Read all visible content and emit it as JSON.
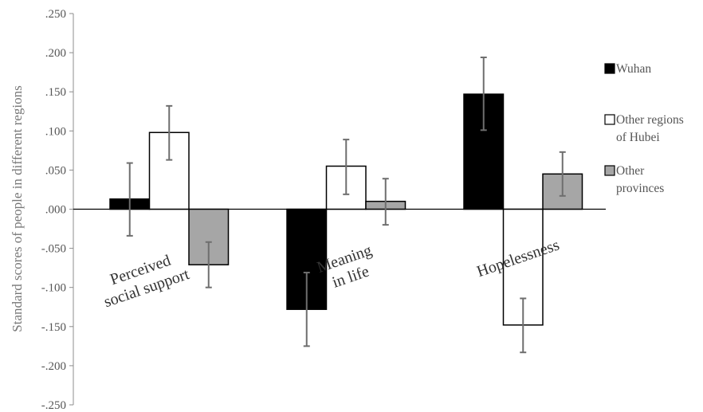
{
  "chart_data": {
    "type": "bar",
    "title": "",
    "xlabel": "",
    "ylabel": "Standard scores of people in different regions",
    "ylim": [
      -0.25,
      0.25
    ],
    "yticks": [
      0.25,
      0.2,
      0.15,
      0.1,
      0.05,
      0.0,
      -0.05,
      -0.1,
      -0.15,
      -0.2,
      -0.25
    ],
    "ytick_labels": [
      ".250",
      ".200",
      ".150",
      ".100",
      ".050",
      ".000",
      "-.050",
      "-.100",
      "-.150",
      "-.200",
      "-.250"
    ],
    "grid": false,
    "legend_position": "right",
    "categories": [
      "Perceived social support",
      "Meaning in life",
      "Hopelessness"
    ],
    "category_label_lines": [
      [
        "Perceived",
        "social support"
      ],
      [
        "Meaning",
        "in life"
      ],
      [
        "Hopelessness"
      ]
    ],
    "series": [
      {
        "name": "Wuhan",
        "legend_lines": [
          "Wuhan"
        ],
        "color": "#000000",
        "values": [
          0.013,
          -0.128,
          0.147
        ],
        "error_low": [
          -0.034,
          -0.175,
          0.101
        ],
        "error_high": [
          0.059,
          -0.081,
          0.194
        ]
      },
      {
        "name": "Other regions of Hubei",
        "legend_lines": [
          "Other regions",
          "of Hubei"
        ],
        "color": "#ffffff",
        "values": [
          0.098,
          0.055,
          -0.148
        ],
        "error_low": [
          0.063,
          0.019,
          -0.183
        ],
        "error_high": [
          0.132,
          0.089,
          -0.114
        ]
      },
      {
        "name": "Other provinces",
        "legend_lines": [
          " Other",
          "provinces"
        ],
        "color": "#a6a6a6",
        "values": [
          -0.071,
          0.01,
          0.045
        ],
        "error_low": [
          -0.1,
          -0.02,
          0.017
        ],
        "error_high": [
          -0.042,
          0.039,
          0.073
        ]
      }
    ]
  }
}
